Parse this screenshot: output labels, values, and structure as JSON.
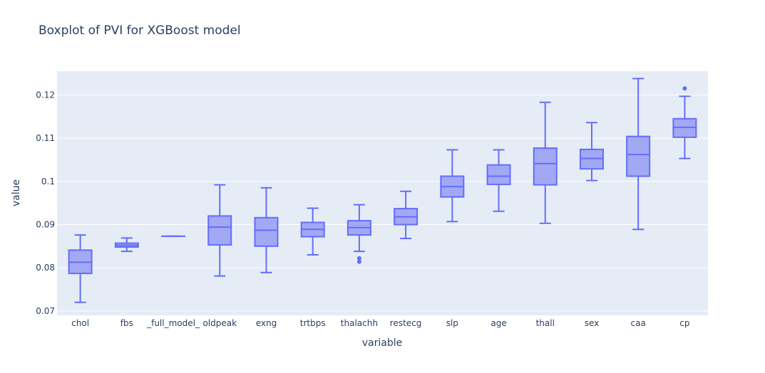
{
  "chart_data": {
    "type": "box",
    "title": "Boxplot of PVI for XGBoost model",
    "xlabel": "variable",
    "ylabel": "value",
    "ylim": [
      0.069,
      0.1255
    ],
    "yticks": [
      0.07,
      0.08,
      0.09,
      0.1,
      0.11,
      0.12
    ],
    "ytick_labels": [
      "0.07",
      "0.08",
      "0.09",
      "0.1",
      "0.11",
      "0.12"
    ],
    "grid": true,
    "colors": {
      "box_line": "#636efa",
      "box_fill": "#a3a8f5",
      "plot_bg": "#e5ecf6",
      "grid": "#ffffff",
      "text": "#2a3f5f"
    },
    "categories": [
      "chol",
      "fbs",
      "_full_model_",
      "oldpeak",
      "exng",
      "trtbps",
      "thalachh",
      "restecg",
      "slp",
      "age",
      "thall",
      "sex",
      "caa",
      "cp"
    ],
    "boxes": [
      {
        "label": "chol",
        "min": 0.072,
        "q1": 0.0787,
        "median": 0.0813,
        "q3": 0.0841,
        "max": 0.0876,
        "outliers": []
      },
      {
        "label": "fbs",
        "min": 0.0838,
        "q1": 0.0848,
        "median": 0.0852,
        "q3": 0.0857,
        "max": 0.0869,
        "outliers": []
      },
      {
        "label": "_full_model_",
        "min": 0.0873,
        "q1": 0.0873,
        "median": 0.0873,
        "q3": 0.0873,
        "max": 0.0873,
        "outliers": []
      },
      {
        "label": "oldpeak",
        "min": 0.0781,
        "q1": 0.0853,
        "median": 0.0894,
        "q3": 0.092,
        "max": 0.0992,
        "outliers": []
      },
      {
        "label": "exng",
        "min": 0.0789,
        "q1": 0.085,
        "median": 0.0887,
        "q3": 0.0916,
        "max": 0.0985,
        "outliers": []
      },
      {
        "label": "trtbps",
        "min": 0.083,
        "q1": 0.0872,
        "median": 0.0889,
        "q3": 0.0905,
        "max": 0.0938,
        "outliers": []
      },
      {
        "label": "thalachh",
        "min": 0.0838,
        "q1": 0.0876,
        "median": 0.0893,
        "q3": 0.0909,
        "max": 0.0946,
        "outliers": [
          0.0822,
          0.0814
        ]
      },
      {
        "label": "restecg",
        "min": 0.0868,
        "q1": 0.09,
        "median": 0.0918,
        "q3": 0.0937,
        "max": 0.0977,
        "outliers": []
      },
      {
        "label": "slp",
        "min": 0.0907,
        "q1": 0.0964,
        "median": 0.0988,
        "q3": 0.1012,
        "max": 0.1073,
        "outliers": []
      },
      {
        "label": "age",
        "min": 0.0931,
        "q1": 0.0993,
        "median": 0.1012,
        "q3": 0.1038,
        "max": 0.1073,
        "outliers": []
      },
      {
        "label": "thall",
        "min": 0.0903,
        "q1": 0.0992,
        "median": 0.1041,
        "q3": 0.1077,
        "max": 0.1183,
        "outliers": []
      },
      {
        "label": "sex",
        "min": 0.1002,
        "q1": 0.1029,
        "median": 0.1053,
        "q3": 0.1074,
        "max": 0.1136,
        "outliers": []
      },
      {
        "label": "caa",
        "min": 0.0889,
        "q1": 0.1012,
        "median": 0.1062,
        "q3": 0.1104,
        "max": 0.1238,
        "outliers": []
      },
      {
        "label": "cp",
        "min": 0.1053,
        "q1": 0.1102,
        "median": 0.1125,
        "q3": 0.1145,
        "max": 0.1197,
        "outliers": [
          0.1215
        ]
      }
    ]
  }
}
